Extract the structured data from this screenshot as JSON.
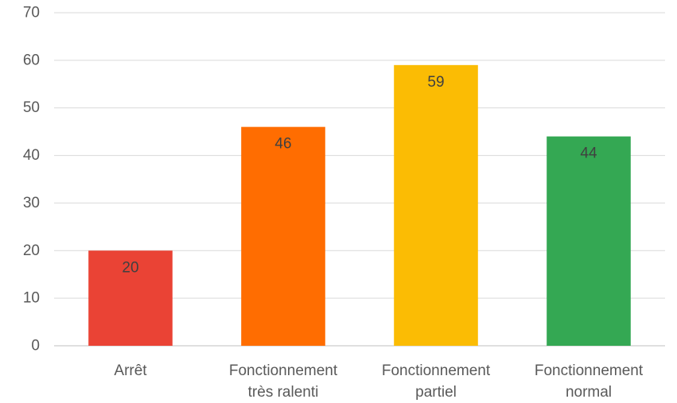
{
  "chart_data": {
    "type": "bar",
    "title": "",
    "xlabel": "",
    "ylabel": "",
    "categories": [
      [
        "Arrêt"
      ],
      [
        "Fonctionnement",
        "très ralenti"
      ],
      [
        "Fonctionnement",
        "partiel"
      ],
      [
        "Fonctionnement",
        "normal"
      ]
    ],
    "values": [
      20,
      46,
      59,
      44
    ],
    "data_labels": [
      "20",
      "46",
      "59",
      "44"
    ],
    "colors": [
      "#ea4335",
      "#ff6d01",
      "#fbbc04",
      "#34a853"
    ],
    "ylim": [
      0,
      70
    ],
    "yticks": [
      0,
      10,
      20,
      30,
      40,
      50,
      60,
      70
    ],
    "grid": true,
    "legend": "none"
  }
}
